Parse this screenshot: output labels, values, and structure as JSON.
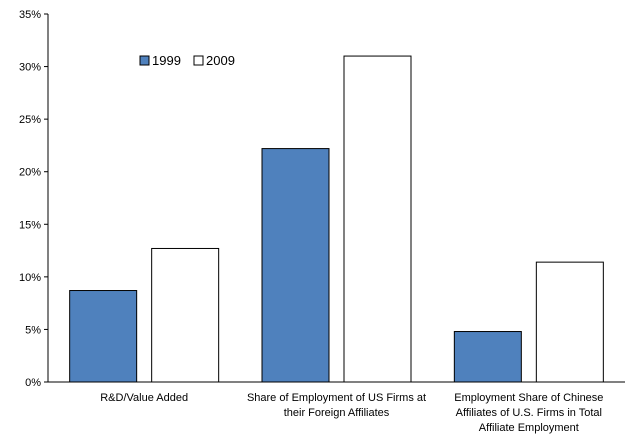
{
  "chart_data": {
    "type": "bar",
    "categories": [
      [
        "R&D/Value Added"
      ],
      [
        "Share of Employment of US Firms at",
        "their Foreign Affiliates"
      ],
      [
        "Employment Share of Chinese",
        "Affiliates of U.S. Firms in Total",
        "Affiliate Employment"
      ]
    ],
    "series": [
      {
        "name": "1999",
        "values": [
          8.7,
          22.2,
          4.8
        ],
        "color": "#4f81bd"
      },
      {
        "name": "2009",
        "values": [
          12.7,
          31.0,
          11.4
        ],
        "color": "#ffffff"
      }
    ],
    "ylim": [
      0,
      35
    ],
    "yticks": [
      "0%",
      "5%",
      "10%",
      "15%",
      "20%",
      "25%",
      "30%",
      "35%"
    ],
    "ytick_values": [
      0,
      5,
      10,
      15,
      20,
      25,
      30,
      35
    ],
    "legend_position": "upper-left",
    "grid": false,
    "title": "",
    "xlabel": "",
    "ylabel": ""
  }
}
